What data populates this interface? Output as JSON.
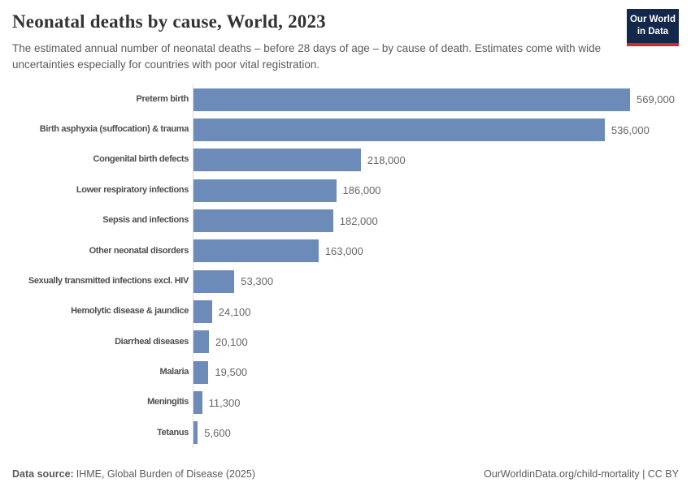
{
  "header": {
    "title": "Neonatal deaths by cause, World, 2023",
    "subtitle": "The estimated annual number of neonatal deaths – before 28 days of age – by cause of death. Estimates come with wide uncertainties especially for countries with poor vital registration.",
    "logo": {
      "line1": "Our World",
      "line2": "in Data"
    }
  },
  "chart_data": {
    "type": "bar",
    "orientation": "horizontal",
    "title": "Neonatal deaths by cause, World, 2023",
    "categories": [
      "Preterm birth",
      "Birth asphyxia (suffocation) & trauma",
      "Congenital birth defects",
      "Lower respiratory infections",
      "Sepsis and infections",
      "Other neonatal disorders",
      "Sexually transmitted infections excl. HIV",
      "Hemolytic disease & jaundice",
      "Diarrheal diseases",
      "Malaria",
      "Meningitis",
      "Tetanus"
    ],
    "values": [
      569000,
      536000,
      218000,
      186000,
      182000,
      163000,
      53300,
      24100,
      20100,
      19500,
      11300,
      5600
    ],
    "value_labels": [
      "569,000",
      "536,000",
      "218,000",
      "186,000",
      "182,000",
      "163,000",
      "53,300",
      "24,100",
      "20,100",
      "19,500",
      "11,300",
      "5,600"
    ],
    "xlim": [
      0,
      569000
    ],
    "grid": false,
    "legend": null,
    "bar_color": "#6d8bb8",
    "axis_color": "#d9d9d9"
  },
  "footer": {
    "source_label": "Data source:",
    "source_text": "IHME, Global Burden of Disease (2025)",
    "link_text": "OurWorldinData.org/child-mortality | CC BY"
  }
}
